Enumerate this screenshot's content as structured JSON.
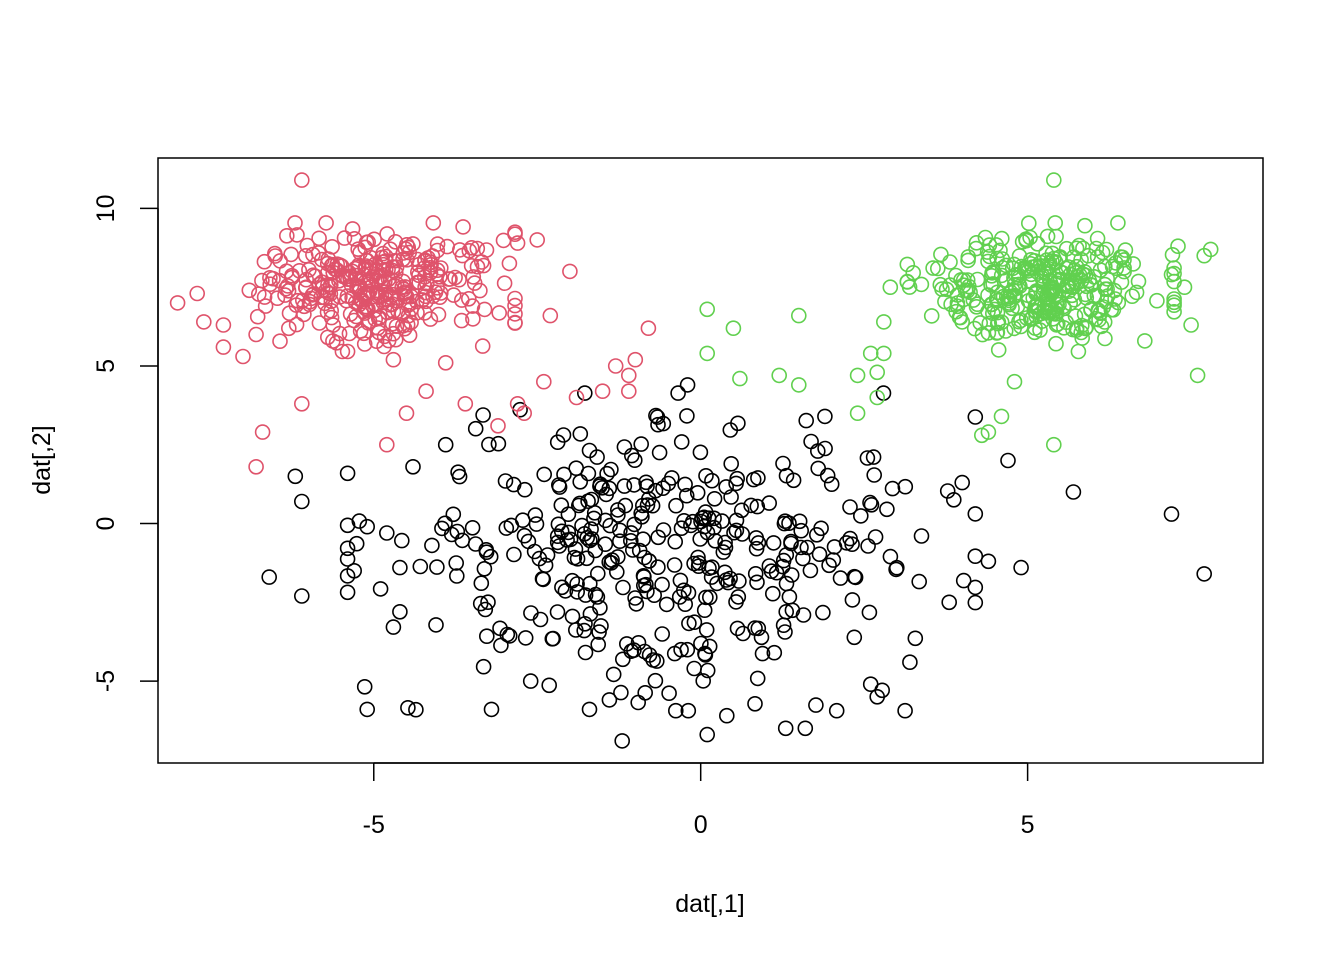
{
  "chart_data": {
    "type": "scatter",
    "title": "",
    "xlabel": "dat[,1]",
    "ylabel": "dat[,2]",
    "xlim": [
      -8.3,
      8.6
    ],
    "ylim": [
      -7.6,
      11.6
    ],
    "x_ticks": [
      -5,
      0,
      5
    ],
    "y_ticks": [
      -5,
      0,
      5,
      10
    ],
    "x_tick_labels": [
      "-5",
      "0",
      "5"
    ],
    "y_tick_labels": [
      "-5",
      "0",
      "5",
      "10"
    ],
    "grid": false,
    "legend": "none",
    "marker": "open-circle",
    "clusters": [
      {
        "color": "#DF536B",
        "n": 330,
        "center": [
          -5.0,
          7.5
        ],
        "sd": [
          0.9,
          0.85
        ],
        "outliers": [
          [
            -8.0,
            7.0
          ],
          [
            -7.7,
            7.3
          ],
          [
            -7.6,
            6.4
          ],
          [
            -7.3,
            6.3
          ],
          [
            -7.3,
            5.6
          ],
          [
            -7.0,
            5.3
          ],
          [
            -6.8,
            6.0
          ],
          [
            -6.7,
            2.9
          ],
          [
            -6.8,
            1.8
          ],
          [
            -6.1,
            10.9
          ],
          [
            -6.1,
            3.8
          ],
          [
            -4.5,
            3.5
          ],
          [
            -4.2,
            4.2
          ],
          [
            -4.7,
            5.2
          ],
          [
            -3.9,
            5.1
          ],
          [
            -3.6,
            3.8
          ],
          [
            -2.8,
            3.8
          ],
          [
            -2.7,
            3.5
          ],
          [
            -3.1,
            3.1
          ],
          [
            -2.4,
            4.5
          ],
          [
            -1.9,
            4.0
          ],
          [
            -1.3,
            5.0
          ],
          [
            -1.0,
            5.2
          ],
          [
            -1.1,
            4.7
          ],
          [
            -0.8,
            6.2
          ],
          [
            -2.0,
            8.0
          ],
          [
            -2.3,
            6.6
          ],
          [
            -2.5,
            9.0
          ],
          [
            -2.8,
            8.9
          ],
          [
            -4.8,
            2.5
          ],
          [
            -1.5,
            4.2
          ],
          [
            -1.1,
            4.2
          ]
        ]
      },
      {
        "color": "#61D04F",
        "n": 330,
        "center": [
          5.2,
          7.5
        ],
        "sd": [
          0.85,
          0.85
        ],
        "outliers": [
          [
            0.1,
            6.8
          ],
          [
            0.5,
            6.2
          ],
          [
            0.1,
            5.4
          ],
          [
            0.6,
            4.6
          ],
          [
            1.2,
            4.7
          ],
          [
            1.5,
            6.6
          ],
          [
            1.5,
            4.4
          ],
          [
            2.4,
            3.5
          ],
          [
            2.4,
            4.7
          ],
          [
            2.6,
            5.4
          ],
          [
            2.7,
            4.8
          ],
          [
            2.7,
            4.0
          ],
          [
            2.8,
            5.4
          ],
          [
            2.8,
            6.4
          ],
          [
            2.9,
            7.5
          ],
          [
            4.3,
            2.8
          ],
          [
            4.4,
            2.9
          ],
          [
            4.6,
            3.4
          ],
          [
            5.4,
            2.5
          ],
          [
            5.4,
            10.9
          ],
          [
            7.2,
            7.9
          ],
          [
            7.4,
            7.5
          ],
          [
            7.5,
            6.3
          ],
          [
            7.6,
            4.7
          ],
          [
            7.8,
            8.7
          ],
          [
            7.7,
            8.5
          ],
          [
            7.3,
            8.8
          ],
          [
            4.8,
            4.5
          ]
        ]
      },
      {
        "color": "#000000",
        "n": 400,
        "center": [
          -0.6,
          -0.9
        ],
        "sd": [
          2.0,
          2.1
        ],
        "outliers": [
          [
            -6.6,
            -1.7
          ],
          [
            -6.2,
            1.5
          ],
          [
            -6.1,
            0.7
          ],
          [
            -6.1,
            -2.3
          ],
          [
            -5.3,
            -1.5
          ],
          [
            -5.1,
            -0.1
          ],
          [
            -5.1,
            -5.9
          ],
          [
            -4.8,
            -0.3
          ],
          [
            -4.6,
            -2.8
          ],
          [
            -4.6,
            -1.4
          ],
          [
            -4.4,
            1.8
          ],
          [
            -3.9,
            2.5
          ],
          [
            -3.2,
            -5.9
          ],
          [
            -2.6,
            -5.0
          ],
          [
            -1.7,
            -5.9
          ],
          [
            -1.2,
            -6.9
          ],
          [
            -0.1,
            -4.6
          ],
          [
            0.1,
            -6.7
          ],
          [
            0.4,
            -6.1
          ],
          [
            1.3,
            -6.5
          ],
          [
            1.6,
            -6.5
          ],
          [
            2.6,
            -5.1
          ],
          [
            2.7,
            -5.5
          ],
          [
            3.2,
            -4.4
          ],
          [
            3.8,
            -2.5
          ],
          [
            4.4,
            -1.2
          ],
          [
            4.9,
            -1.4
          ],
          [
            5.7,
            1.0
          ],
          [
            7.2,
            0.3
          ],
          [
            7.7,
            -1.6
          ],
          [
            -0.2,
            4.4
          ],
          [
            1.9,
            3.4
          ],
          [
            4.0,
            1.3
          ],
          [
            4.7,
            2.0
          ]
        ]
      }
    ]
  },
  "colors": {
    "series1": "#DF536B",
    "series2": "#61D04F",
    "series3": "#000000",
    "axis": "#000000",
    "background": "#FFFFFF"
  }
}
